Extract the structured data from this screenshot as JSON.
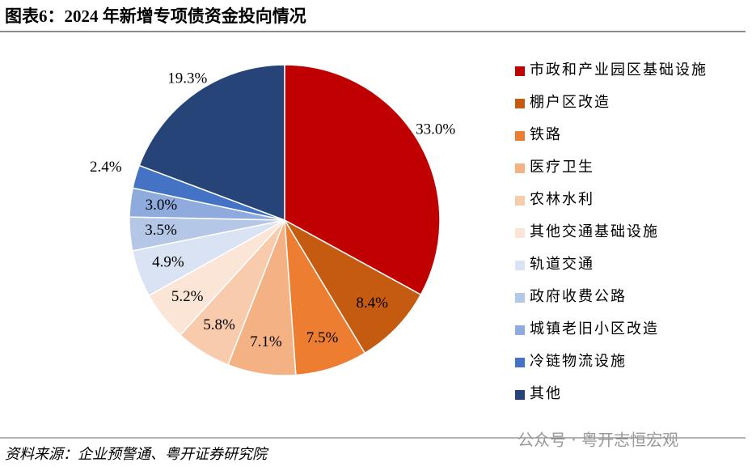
{
  "chart_data": {
    "type": "pie",
    "title": "图表6：2024 年新增专项债资金投向情况",
    "categories": [
      "市政和产业园区基础设施",
      "棚户区改造",
      "铁路",
      "医疗卫生",
      "农林水利",
      "其他交通基础设施",
      "轨道交通",
      "政府收费公路",
      "城镇老旧小区改造",
      "冷链物流设施",
      "其他"
    ],
    "values": [
      33.0,
      8.4,
      7.5,
      7.1,
      5.8,
      5.2,
      4.9,
      3.5,
      3.0,
      2.4,
      19.3
    ],
    "value_labels": [
      "33.0%",
      "8.4%",
      "7.5%",
      "7.1%",
      "5.8%",
      "5.2%",
      "4.9%",
      "3.5%",
      "3.0%",
      "2.4%",
      "19.3%"
    ],
    "colors": [
      "#C00000",
      "#C55A11",
      "#ED7D31",
      "#F4B183",
      "#F8CBAD",
      "#FBE5D6",
      "#DAE3F3",
      "#B4C7E7",
      "#8FAADC",
      "#4472C4",
      "#264478"
    ],
    "legend": "right",
    "source": "资料来源：企业预警通、粤开证券研究院",
    "watermark": "公众号 · 粤开志恒宏观"
  }
}
